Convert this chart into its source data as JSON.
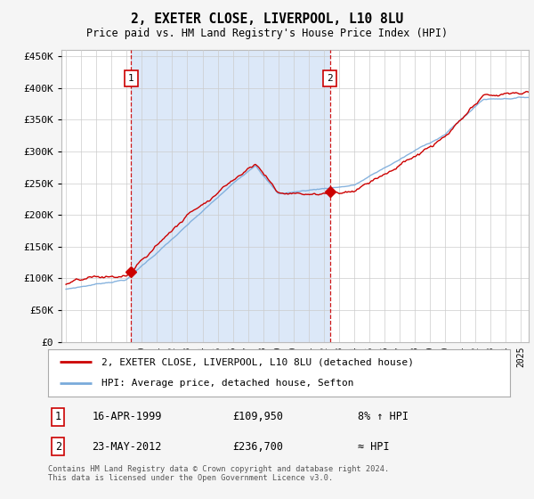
{
  "title": "2, EXETER CLOSE, LIVERPOOL, L10 8LU",
  "subtitle": "Price paid vs. HM Land Registry's House Price Index (HPI)",
  "fig_bg_color": "#f5f5f5",
  "plot_bg_color": "#ffffff",
  "shade_color": "#dce8f8",
  "ylabel": "",
  "ylim": [
    0,
    460000
  ],
  "yticks": [
    0,
    50000,
    100000,
    150000,
    200000,
    250000,
    300000,
    350000,
    400000,
    450000
  ],
  "xlim_start": 1994.7,
  "xlim_end": 2025.5,
  "sale1_date": 1999.29,
  "sale1_price": 109950,
  "sale1_label": "1",
  "sale2_date": 2012.39,
  "sale2_price": 236700,
  "sale2_label": "2",
  "legend_line1": "2, EXETER CLOSE, LIVERPOOL, L10 8LU (detached house)",
  "legend_line2": "HPI: Average price, detached house, Sefton",
  "ann1_date": "16-APR-1999",
  "ann1_price": "£109,950",
  "ann1_hpi": "8% ↑ HPI",
  "ann2_date": "23-MAY-2012",
  "ann2_price": "£236,700",
  "ann2_hpi": "≈ HPI",
  "footer": "Contains HM Land Registry data © Crown copyright and database right 2024.\nThis data is licensed under the Open Government Licence v3.0.",
  "hpi_color": "#7aabdb",
  "price_color": "#cc0000",
  "dashed_line_color": "#cc0000",
  "grid_color": "#cccccc",
  "label_box_color": "#cc0000"
}
